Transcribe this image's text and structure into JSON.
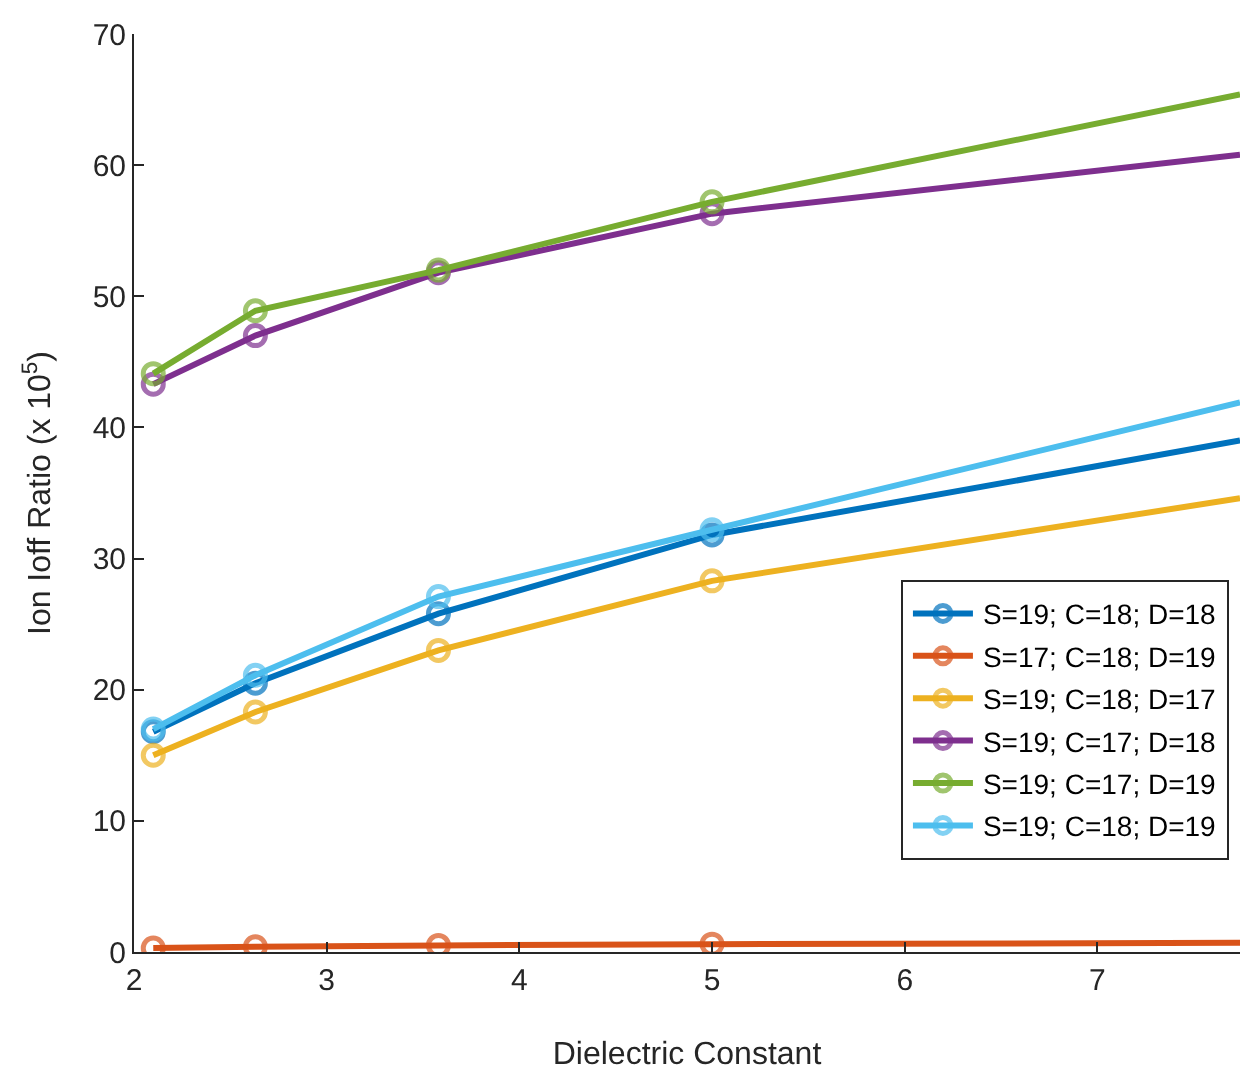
{
  "chart_data": {
    "type": "line",
    "xlabel": "Dielectric Constant",
    "ylabel": "Ion Ioff Ratio (x 10$^{5}$)",
    "x": [
      2.1,
      2.63,
      3.58,
      5,
      7.74
    ],
    "series": [
      {
        "name": "S=19; C=18; D=18",
        "color": "#0072bd",
        "values": [
          16.8,
          20.5,
          25.8,
          31.8,
          39
        ]
      },
      {
        "name": "S=17; C=18; D=19",
        "color": "#d95319",
        "values": [
          0.3,
          0.4,
          0.5,
          0.6,
          0.7
        ]
      },
      {
        "name": "S=19; C=18; D=17",
        "color": "#edb120",
        "values": [
          15,
          18.3,
          23,
          28.3,
          34.6
        ]
      },
      {
        "name": "S=19; C=17; D=18",
        "color": "#7e2f8e",
        "values": [
          43.3,
          47,
          51.8,
          56.3,
          60.8
        ]
      },
      {
        "name": "S=19; C=17; D=19",
        "color": "#77ac30",
        "values": [
          44.1,
          48.9,
          52,
          57.2,
          65.4
        ]
      },
      {
        "name": "S=19; C=18; D=19",
        "color": "#4dbeee",
        "values": [
          17,
          21.1,
          27.1,
          32.2,
          41.9
        ]
      }
    ],
    "xlim": [
      2,
      7.74
    ],
    "xticks": [
      2,
      3,
      4,
      5,
      6,
      7
    ],
    "ylim": [
      0,
      70
    ],
    "yticks": [
      0,
      10,
      20,
      30,
      40,
      50,
      60,
      70
    ],
    "grid": false,
    "legend": "bottom right",
    "marker": "circle",
    "line_style": "solid"
  }
}
